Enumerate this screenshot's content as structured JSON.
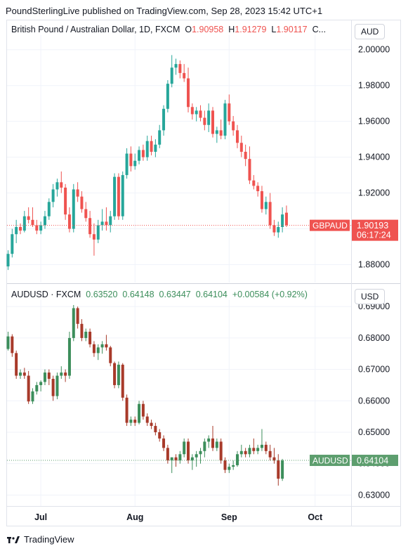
{
  "header": {
    "publisher_line": "PoundSterlingLive published on TradingView.com, Sep 28, 2023 15:42 UTC+1"
  },
  "footer": {
    "brand": "TradingView"
  },
  "colors": {
    "up": "#26a69a",
    "down": "#ef5350",
    "up_green_pane2": "#3c8e5b",
    "down_brown_pane2": "#a83a2a"
  },
  "chart_data": [
    {
      "type": "candlestick",
      "title": "British Pound / Australian Dollar, 1D, FXCM",
      "legend": {
        "o_label": "O",
        "o": "1.90958",
        "h_label": "H",
        "h": "1.91279",
        "l_label": "L",
        "l": "1.90117",
        "more": "C..."
      },
      "currency": "AUD",
      "ylim": [
        1.87,
        2.005
      ],
      "yticks": [
        "1.88000",
        "1.90000",
        "1.92000",
        "1.94000",
        "1.96000",
        "1.98000",
        "2.00000"
      ],
      "price_tag": {
        "symbol": "GBPAUD",
        "price": "1.90193",
        "countdown": "06:17:24",
        "value": 1.90193
      },
      "candles": [
        [
          1.879,
          1.888,
          1.877,
          1.886
        ],
        [
          1.886,
          1.9,
          1.884,
          1.897
        ],
        [
          1.897,
          1.905,
          1.892,
          1.901
        ],
        [
          1.901,
          1.903,
          1.897,
          1.899
        ],
        [
          1.899,
          1.91,
          1.898,
          1.907
        ],
        [
          1.907,
          1.912,
          1.903,
          1.905
        ],
        [
          1.905,
          1.912,
          1.901,
          1.902
        ],
        [
          1.902,
          1.905,
          1.897,
          1.899
        ],
        [
          1.899,
          1.904,
          1.897,
          1.902
        ],
        [
          1.902,
          1.91,
          1.9,
          1.907
        ],
        [
          1.907,
          1.917,
          1.905,
          1.915
        ],
        [
          1.915,
          1.925,
          1.912,
          1.922
        ],
        [
          1.922,
          1.928,
          1.918,
          1.926
        ],
        [
          1.926,
          1.932,
          1.92,
          1.923
        ],
        [
          1.923,
          1.925,
          1.905,
          1.908
        ],
        [
          1.908,
          1.912,
          1.898,
          1.9
        ],
        [
          1.9,
          1.925,
          1.898,
          1.922
        ],
        [
          1.922,
          1.926,
          1.915,
          1.918
        ],
        [
          1.918,
          1.921,
          1.909,
          1.911
        ],
        [
          1.911,
          1.915,
          1.904,
          1.906
        ],
        [
          1.906,
          1.91,
          1.895,
          1.897
        ],
        [
          1.897,
          1.903,
          1.885,
          1.894
        ],
        [
          1.894,
          1.905,
          1.892,
          1.902
        ],
        [
          1.902,
          1.911,
          1.899,
          1.904
        ],
        [
          1.904,
          1.912,
          1.899,
          1.902
        ],
        [
          1.902,
          1.91,
          1.898,
          1.907
        ],
        [
          1.907,
          1.931,
          1.905,
          1.929
        ],
        [
          1.929,
          1.931,
          1.905,
          1.907
        ],
        [
          1.907,
          1.932,
          1.905,
          1.93
        ],
        [
          1.93,
          1.945,
          1.928,
          1.942
        ],
        [
          1.942,
          1.946,
          1.932,
          1.935
        ],
        [
          1.935,
          1.942,
          1.933,
          1.938
        ],
        [
          1.938,
          1.946,
          1.936,
          1.944
        ],
        [
          1.944,
          1.947,
          1.938,
          1.94
        ],
        [
          1.94,
          1.952,
          1.938,
          1.949
        ],
        [
          1.949,
          1.952,
          1.941,
          1.943
        ],
        [
          1.943,
          1.95,
          1.94,
          1.947
        ],
        [
          1.947,
          1.958,
          1.945,
          1.955
        ],
        [
          1.955,
          1.969,
          1.952,
          1.967
        ],
        [
          1.967,
          1.983,
          1.965,
          1.981
        ],
        [
          1.981,
          1.997,
          1.979,
          1.99
        ],
        [
          1.99,
          1.995,
          1.986,
          1.992
        ],
        [
          1.992,
          1.994,
          1.984,
          1.987
        ],
        [
          1.987,
          1.992,
          1.982,
          1.984
        ],
        [
          1.984,
          1.99,
          1.965,
          1.968
        ],
        [
          1.968,
          1.97,
          1.961,
          1.964
        ],
        [
          1.964,
          1.968,
          1.96,
          1.966
        ],
        [
          1.966,
          1.969,
          1.96,
          1.962
        ],
        [
          1.962,
          1.966,
          1.955,
          1.958
        ],
        [
          1.958,
          1.97,
          1.954,
          1.966
        ],
        [
          1.966,
          1.968,
          1.951,
          1.953
        ],
        [
          1.953,
          1.957,
          1.948,
          1.955
        ],
        [
          1.955,
          1.961,
          1.95,
          1.952
        ],
        [
          1.952,
          1.972,
          1.95,
          1.97
        ],
        [
          1.97,
          1.975,
          1.958,
          1.96
        ],
        [
          1.96,
          1.963,
          1.952,
          1.955
        ],
        [
          1.955,
          1.958,
          1.945,
          1.948
        ],
        [
          1.948,
          1.952,
          1.94,
          1.943
        ],
        [
          1.943,
          1.947,
          1.935,
          1.939
        ],
        [
          1.939,
          1.946,
          1.925,
          1.927
        ],
        [
          1.927,
          1.93,
          1.922,
          1.924
        ],
        [
          1.924,
          1.926,
          1.918,
          1.921
        ],
        [
          1.921,
          1.924,
          1.909,
          1.911
        ],
        [
          1.911,
          1.918,
          1.908,
          1.915
        ],
        [
          1.915,
          1.92,
          1.9,
          1.902
        ],
        [
          1.902,
          1.905,
          1.896,
          1.898
        ],
        [
          1.898,
          1.904,
          1.895,
          1.901
        ],
        [
          1.901,
          1.912,
          1.898,
          1.908
        ],
        [
          1.909,
          1.913,
          1.901,
          1.902
        ]
      ]
    },
    {
      "type": "candlestick",
      "title": "AUDUSD · FXCM",
      "legend": {
        "o": "0.63520",
        "h": "0.64148",
        "l": "0.63447",
        "c": "0.64104",
        "change": "+0.00584 (+0.92%)"
      },
      "currency": "USD",
      "ylim": [
        0.6265,
        0.6905
      ],
      "yticks": [
        "0.63000",
        "0.64000",
        "0.65000",
        "0.66000",
        "0.67000",
        "0.68000",
        "0.69000"
      ],
      "price_tag": {
        "symbol": "AUDUSD",
        "price": "0.64104",
        "value": 0.64104
      },
      "x_labels": [
        {
          "label": "Jul",
          "index": 8
        },
        {
          "label": "Aug",
          "index": 31
        },
        {
          "label": "Sep",
          "index": 54
        },
        {
          "label": "Oct",
          "index": 75
        }
      ],
      "candles": [
        [
          0.6765,
          0.682,
          0.676,
          0.6805
        ],
        [
          0.6805,
          0.6812,
          0.674,
          0.6752
        ],
        [
          0.6752,
          0.676,
          0.667,
          0.668
        ],
        [
          0.668,
          0.67,
          0.667,
          0.669
        ],
        [
          0.669,
          0.6705,
          0.667,
          0.668
        ],
        [
          0.668,
          0.6695,
          0.659,
          0.6598
        ],
        [
          0.6598,
          0.664,
          0.659,
          0.663
        ],
        [
          0.663,
          0.666,
          0.662,
          0.665
        ],
        [
          0.665,
          0.6665,
          0.663,
          0.666
        ],
        [
          0.666,
          0.67,
          0.665,
          0.669
        ],
        [
          0.669,
          0.67,
          0.665,
          0.667
        ],
        [
          0.667,
          0.668,
          0.66,
          0.6615
        ],
        [
          0.6615,
          0.669,
          0.6605,
          0.668
        ],
        [
          0.668,
          0.671,
          0.667,
          0.669
        ],
        [
          0.669,
          0.67,
          0.666,
          0.668
        ],
        [
          0.668,
          0.682,
          0.667,
          0.68
        ],
        [
          0.68,
          0.6905,
          0.679,
          0.6895
        ],
        [
          0.6895,
          0.69,
          0.683,
          0.6845
        ],
        [
          0.6845,
          0.686,
          0.679,
          0.68
        ],
        [
          0.68,
          0.683,
          0.679,
          0.682
        ],
        [
          0.682,
          0.683,
          0.677,
          0.678
        ],
        [
          0.678,
          0.679,
          0.674,
          0.6752
        ],
        [
          0.6752,
          0.678,
          0.673,
          0.677
        ],
        [
          0.677,
          0.679,
          0.675,
          0.678
        ],
        [
          0.678,
          0.681,
          0.676,
          0.677
        ],
        [
          0.677,
          0.6775,
          0.671,
          0.672
        ],
        [
          0.672,
          0.6725,
          0.664,
          0.665
        ],
        [
          0.665,
          0.6725,
          0.664,
          0.6715
        ],
        [
          0.6715,
          0.672,
          0.66,
          0.661
        ],
        [
          0.661,
          0.662,
          0.652,
          0.653
        ],
        [
          0.653,
          0.655,
          0.652,
          0.654
        ],
        [
          0.654,
          0.655,
          0.652,
          0.653
        ],
        [
          0.653,
          0.66,
          0.6525,
          0.659
        ],
        [
          0.659,
          0.66,
          0.654,
          0.655
        ],
        [
          0.655,
          0.656,
          0.652,
          0.653
        ],
        [
          0.653,
          0.654,
          0.651,
          0.652
        ],
        [
          0.652,
          0.653,
          0.649,
          0.65
        ],
        [
          0.65,
          0.651,
          0.647,
          0.648
        ],
        [
          0.648,
          0.649,
          0.644,
          0.645
        ],
        [
          0.645,
          0.646,
          0.64,
          0.641
        ],
        [
          0.641,
          0.642,
          0.637,
          0.642
        ],
        [
          0.642,
          0.643,
          0.639,
          0.641
        ],
        [
          0.641,
          0.644,
          0.64,
          0.643
        ],
        [
          0.643,
          0.648,
          0.642,
          0.647
        ],
        [
          0.647,
          0.648,
          0.64,
          0.641
        ],
        [
          0.641,
          0.643,
          0.638,
          0.642
        ],
        [
          0.642,
          0.644,
          0.639,
          0.643
        ],
        [
          0.643,
          0.645,
          0.64,
          0.644
        ],
        [
          0.644,
          0.648,
          0.642,
          0.647
        ],
        [
          0.647,
          0.649,
          0.645,
          0.648
        ],
        [
          0.648,
          0.652,
          0.644,
          0.645
        ],
        [
          0.645,
          0.648,
          0.644,
          0.647
        ],
        [
          0.647,
          0.648,
          0.64,
          0.641
        ],
        [
          0.641,
          0.642,
          0.637,
          0.638
        ],
        [
          0.638,
          0.64,
          0.637,
          0.639
        ],
        [
          0.639,
          0.641,
          0.638,
          0.6395
        ],
        [
          0.6395,
          0.644,
          0.639,
          0.643
        ],
        [
          0.643,
          0.646,
          0.642,
          0.644
        ],
        [
          0.644,
          0.645,
          0.642,
          0.643
        ],
        [
          0.643,
          0.646,
          0.642,
          0.645
        ],
        [
          0.645,
          0.648,
          0.643,
          0.644
        ],
        [
          0.644,
          0.646,
          0.643,
          0.645
        ],
        [
          0.645,
          0.651,
          0.644,
          0.646
        ],
        [
          0.646,
          0.647,
          0.643,
          0.644
        ],
        [
          0.644,
          0.646,
          0.641,
          0.642
        ],
        [
          0.642,
          0.645,
          0.64,
          0.641
        ],
        [
          0.641,
          0.643,
          0.633,
          0.6352
        ],
        [
          0.6352,
          0.6415,
          0.6345,
          0.641
        ]
      ]
    }
  ]
}
